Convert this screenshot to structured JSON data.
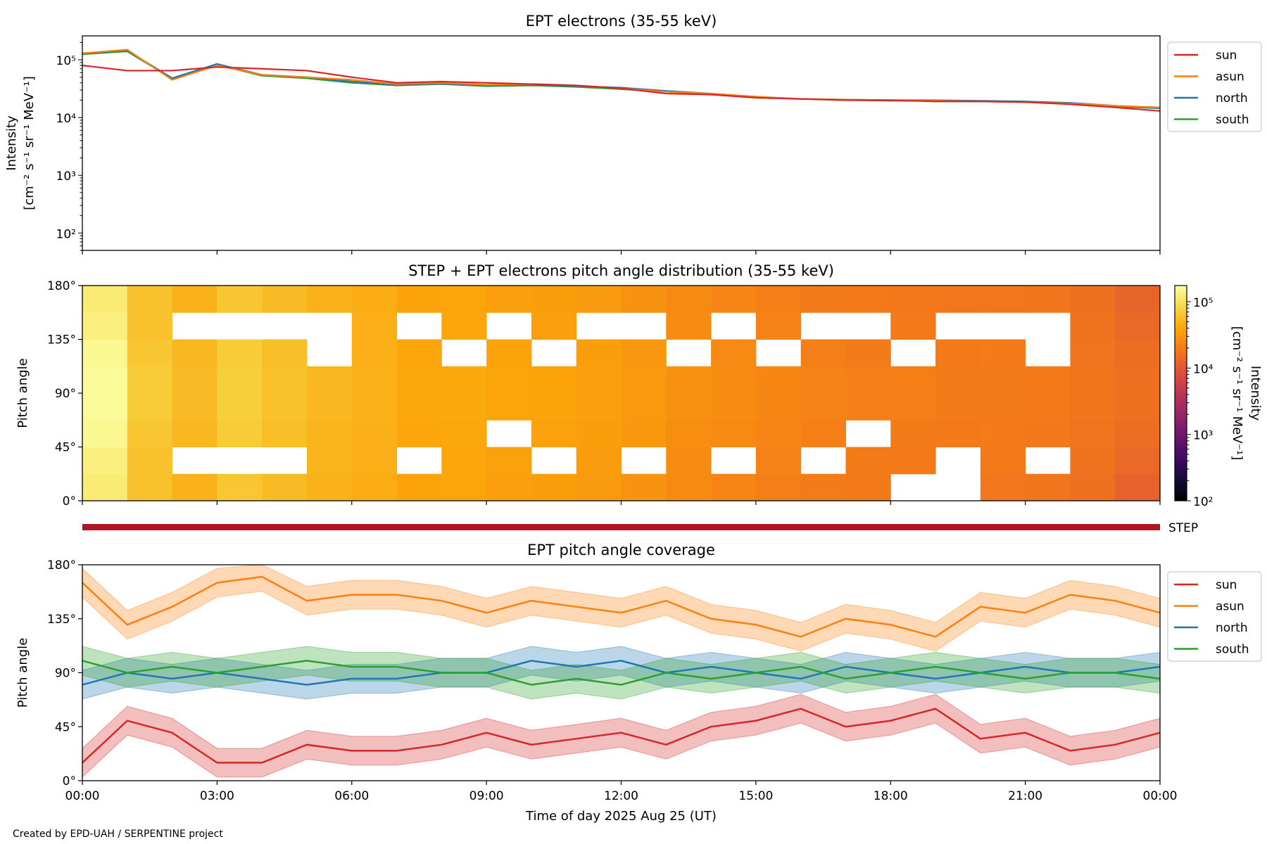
{
  "chart_data": [
    {
      "type": "line",
      "title": "EPT electrons (35-55 keV)",
      "ylabel": "Intensity",
      "ylabel_units": "[cm⁻² s⁻¹ sr⁻¹ MeV⁻¹]",
      "yscale": "log",
      "ylim": [
        50,
        260000
      ],
      "yticks": [
        {
          "value": 100,
          "label": "10²"
        },
        {
          "value": 1000,
          "label": "10³"
        },
        {
          "value": 10000,
          "label": "10⁴"
        },
        {
          "value": 100000,
          "label": "10⁵"
        }
      ],
      "x_hours": [
        0,
        1,
        2,
        3,
        4,
        5,
        6,
        7,
        8,
        9,
        10,
        11,
        12,
        13,
        14,
        15,
        16,
        17,
        18,
        19,
        20,
        21,
        22,
        23,
        24
      ],
      "legend_placement": "outside-right-top",
      "series": [
        {
          "name": "sun",
          "color": "#d62728",
          "values": [
            80000,
            65000,
            65000,
            75000,
            70000,
            65000,
            50000,
            40000,
            42000,
            40000,
            38000,
            36000,
            32000,
            26000,
            25000,
            22000,
            21000,
            20000,
            20000,
            19000,
            19000,
            18500,
            17000,
            15000,
            13000
          ]
        },
        {
          "name": "asun",
          "color": "#ff7f0e",
          "values": [
            130000,
            150000,
            45000,
            80000,
            55000,
            50000,
            45000,
            38000,
            40000,
            37000,
            38000,
            36000,
            32000,
            28000,
            26000,
            23000,
            21000,
            20500,
            20000,
            19500,
            19000,
            18500,
            17500,
            16000,
            15000
          ]
        },
        {
          "name": "north",
          "color": "#1f77b4",
          "values": [
            130000,
            145000,
            48000,
            85000,
            55000,
            50000,
            42000,
            37000,
            39000,
            36000,
            37000,
            35000,
            33000,
            29000,
            26000,
            23000,
            21000,
            20500,
            20000,
            20000,
            19500,
            19000,
            18000,
            16000,
            14500
          ]
        },
        {
          "name": "south",
          "color": "#2ca02c",
          "values": [
            125000,
            140000,
            47000,
            82000,
            53000,
            48000,
            40000,
            36000,
            38000,
            35000,
            36000,
            34000,
            31000,
            28000,
            25500,
            22500,
            21000,
            20000,
            19500,
            19500,
            19000,
            18500,
            17500,
            15500,
            14500
          ]
        }
      ]
    },
    {
      "type": "heatmap",
      "title": "STEP + EPT electrons pitch angle distribution (35-55 keV)",
      "ylabel": "Pitch angle",
      "ylim": [
        0,
        180
      ],
      "yticks": [
        "0°",
        "45°",
        "90°",
        "135°",
        "180°"
      ],
      "pitch_bins_deg": [
        0,
        22.5,
        45,
        67.5,
        90,
        112.5,
        135,
        157.5,
        180
      ],
      "x_hours": [
        0,
        1,
        2,
        3,
        4,
        5,
        6,
        7,
        8,
        9,
        10,
        11,
        12,
        13,
        14,
        15,
        16,
        17,
        18,
        19,
        20,
        21,
        22,
        23,
        24
      ],
      "colorbar": {
        "label": "Intensity",
        "units": "[cm⁻² s⁻¹ sr⁻¹ MeV⁻¹]",
        "scale": "log",
        "range": [
          100,
          175000
        ],
        "colormap": "inferno",
        "ticks": [
          {
            "value": 100,
            "label": "10²"
          },
          {
            "value": 1000,
            "label": "10³"
          },
          {
            "value": 10000,
            "label": "10⁴"
          },
          {
            "value": 100000,
            "label": "10⁵"
          }
        ]
      },
      "values": [
        [
          120000,
          130000,
          150000,
          160000,
          160000,
          150000,
          130000,
          120000
        ],
        [
          60000,
          60000,
          65000,
          70000,
          70000,
          65000,
          60000,
          60000
        ],
        [
          48000,
          null,
          52000,
          55000,
          55000,
          52000,
          null,
          48000
        ],
        [
          65000,
          null,
          70000,
          72000,
          72000,
          70000,
          null,
          65000
        ],
        [
          55000,
          null,
          58000,
          60000,
          60000,
          58000,
          null,
          55000
        ],
        [
          48000,
          50000,
          50000,
          52000,
          52000,
          null,
          null,
          48000
        ],
        [
          44000,
          45000,
          46000,
          47000,
          47000,
          46000,
          45000,
          44000
        ],
        [
          38000,
          null,
          40000,
          41000,
          41000,
          40000,
          null,
          38000
        ],
        [
          39000,
          40000,
          41000,
          42000,
          42000,
          null,
          40000,
          39000
        ],
        [
          36000,
          37000,
          null,
          39000,
          39000,
          38000,
          null,
          36000
        ],
        [
          35000,
          null,
          37000,
          38000,
          38000,
          null,
          36000,
          35000
        ],
        [
          33000,
          34000,
          35000,
          36000,
          36000,
          35000,
          null,
          33000
        ],
        [
          29000,
          null,
          31000,
          32000,
          32000,
          31000,
          null,
          29000
        ],
        [
          25000,
          26000,
          27000,
          28000,
          28000,
          null,
          26000,
          25000
        ],
        [
          23000,
          null,
          25000,
          26000,
          26000,
          25000,
          null,
          23000
        ],
        [
          21000,
          22000,
          23000,
          24000,
          24000,
          null,
          22000,
          21000
        ],
        [
          20000,
          null,
          21000,
          22000,
          22000,
          21000,
          null,
          20000
        ],
        [
          19000,
          20000,
          null,
          21000,
          21000,
          20000,
          null,
          19000
        ],
        [
          null,
          19000,
          20000,
          21000,
          21000,
          null,
          19000,
          18500
        ],
        [
          null,
          null,
          19000,
          20000,
          20000,
          19000,
          null,
          18000
        ],
        [
          18000,
          19000,
          19500,
          20000,
          20000,
          19500,
          null,
          18000
        ],
        [
          17500,
          null,
          18500,
          19000,
          19000,
          null,
          null,
          17500
        ],
        [
          16000,
          16500,
          17000,
          17500,
          17500,
          17000,
          16500,
          16000
        ],
        [
          12000,
          14000,
          15000,
          16000,
          16000,
          15000,
          14000,
          13000
        ]
      ]
    },
    {
      "type": "line",
      "title": "EPT pitch angle coverage",
      "ylabel": "Pitch angle",
      "xlabel": "Time of day 2025 Aug 25 (UT)",
      "ylim": [
        0,
        180
      ],
      "yticks": [
        "0°",
        "45°",
        "90°",
        "135°",
        "180°"
      ],
      "xticks": [
        "00:00",
        "03:00",
        "06:00",
        "09:00",
        "12:00",
        "15:00",
        "18:00",
        "21:00",
        "00:00"
      ],
      "x_hours": [
        0,
        1,
        2,
        3,
        4,
        5,
        6,
        7,
        8,
        9,
        10,
        11,
        12,
        13,
        14,
        15,
        16,
        17,
        18,
        19,
        20,
        21,
        22,
        23,
        24
      ],
      "band_halfwidth_deg": 12,
      "legend_placement": "outside-right-top",
      "series": [
        {
          "name": "sun",
          "color": "#d62728",
          "values": [
            15,
            50,
            40,
            15,
            15,
            30,
            25,
            25,
            30,
            40,
            30,
            35,
            40,
            30,
            45,
            50,
            60,
            45,
            50,
            60,
            35,
            40,
            25,
            30,
            40
          ]
        },
        {
          "name": "asun",
          "color": "#ff7f0e",
          "values": [
            165,
            130,
            145,
            165,
            170,
            150,
            155,
            155,
            150,
            140,
            150,
            145,
            140,
            150,
            135,
            130,
            120,
            135,
            130,
            120,
            145,
            140,
            155,
            150,
            140
          ]
        },
        {
          "name": "north",
          "color": "#1f77b4",
          "values": [
            80,
            90,
            85,
            90,
            85,
            80,
            85,
            85,
            90,
            90,
            100,
            95,
            100,
            90,
            95,
            90,
            85,
            95,
            90,
            85,
            90,
            95,
            90,
            90,
            95
          ]
        },
        {
          "name": "south",
          "color": "#2ca02c",
          "values": [
            100,
            90,
            95,
            90,
            95,
            100,
            95,
            95,
            90,
            90,
            80,
            85,
            80,
            90,
            85,
            90,
            95,
            85,
            90,
            95,
            90,
            85,
            90,
            90,
            85
          ]
        }
      ]
    }
  ],
  "step_bar": {
    "label": "STEP",
    "color": "#b2151f"
  },
  "credit": "Created by EPD-UAH / SERPENTINE project"
}
